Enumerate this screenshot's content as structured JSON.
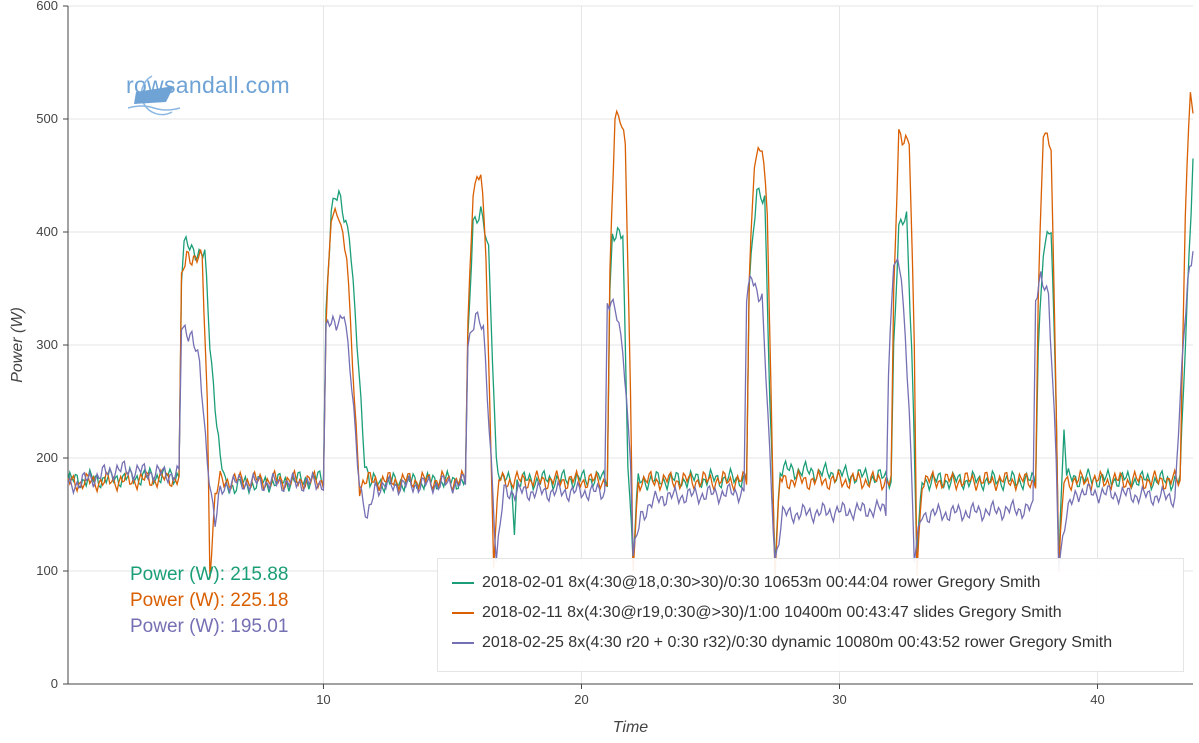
{
  "logo_text": "rowsandall.com",
  "readout": [
    {
      "label": "Power (W): 215.88",
      "color": "#1b9e77"
    },
    {
      "label": "Power (W): 225.18",
      "color": "#d95f02"
    },
    {
      "label": "Power (W): 195.01",
      "color": "#7570b3"
    }
  ],
  "chart_data": {
    "type": "line",
    "title": "",
    "xlabel": "Time",
    "ylabel": "Power (W)",
    "xlim": [
      0.1,
      43.7
    ],
    "ylim": [
      0,
      600
    ],
    "xticks": [
      10,
      20,
      30,
      40
    ],
    "yticks": [
      0,
      100,
      200,
      300,
      400,
      500,
      600
    ],
    "grid": true,
    "legend_position": "bottom-right",
    "series": [
      {
        "name": "2018-02-01 8x(4:30@18,0:30>30)/0:30 10653m 00:44:04 rower Gregory Smith",
        "color": "#1b9e77",
        "points": [
          [
            0.1,
            180
          ],
          [
            4.4,
            185
          ],
          [
            4.5,
            360
          ],
          [
            4.6,
            388
          ],
          [
            5.4,
            380
          ],
          [
            5.6,
            300
          ],
          [
            6.0,
            200
          ],
          [
            6.2,
            175
          ],
          [
            10.0,
            182
          ],
          [
            10.1,
            330
          ],
          [
            10.3,
            420
          ],
          [
            10.6,
            432
          ],
          [
            11.0,
            400
          ],
          [
            11.3,
            300
          ],
          [
            11.6,
            200
          ],
          [
            11.8,
            178
          ],
          [
            15.5,
            180
          ],
          [
            15.6,
            300
          ],
          [
            15.8,
            410
          ],
          [
            16.1,
            420
          ],
          [
            16.4,
            380
          ],
          [
            16.7,
            200
          ],
          [
            16.9,
            180
          ],
          [
            17.3,
            180
          ],
          [
            17.4,
            135
          ],
          [
            17.5,
            180
          ],
          [
            21.0,
            182
          ],
          [
            21.1,
            350
          ],
          [
            21.2,
            398
          ],
          [
            21.6,
            395
          ],
          [
            21.8,
            200
          ],
          [
            22.0,
            110
          ],
          [
            22.2,
            180
          ],
          [
            26.4,
            182
          ],
          [
            26.5,
            350
          ],
          [
            26.8,
            440
          ],
          [
            27.1,
            430
          ],
          [
            27.3,
            250
          ],
          [
            27.5,
            110
          ],
          [
            27.7,
            190
          ],
          [
            32.0,
            182
          ],
          [
            32.1,
            300
          ],
          [
            32.3,
            400
          ],
          [
            32.6,
            415
          ],
          [
            32.8,
            300
          ],
          [
            33.0,
            110
          ],
          [
            33.2,
            180
          ],
          [
            37.6,
            180
          ],
          [
            37.7,
            300
          ],
          [
            37.9,
            385
          ],
          [
            38.2,
            400
          ],
          [
            38.4,
            250
          ],
          [
            38.5,
            110
          ],
          [
            38.7,
            230
          ],
          [
            38.8,
            182
          ],
          [
            43.2,
            180
          ],
          [
            43.4,
            300
          ],
          [
            43.7,
            465
          ]
        ]
      },
      {
        "name": "2018-02-11 8x(4:30@r19,0:30@>30)/1:00 10400m 00:43:47 slides Gregory Smith",
        "color": "#d95f02",
        "points": [
          [
            0.1,
            178
          ],
          [
            4.4,
            182
          ],
          [
            4.5,
            355
          ],
          [
            4.7,
            380
          ],
          [
            5.3,
            375
          ],
          [
            5.5,
            250
          ],
          [
            5.6,
            100
          ],
          [
            5.8,
            165
          ],
          [
            6.0,
            180
          ],
          [
            10.0,
            180
          ],
          [
            10.1,
            320
          ],
          [
            10.3,
            410
          ],
          [
            10.6,
            418
          ],
          [
            10.9,
            380
          ],
          [
            11.2,
            250
          ],
          [
            11.4,
            175
          ],
          [
            11.6,
            180
          ],
          [
            15.5,
            180
          ],
          [
            15.6,
            320
          ],
          [
            15.8,
            440
          ],
          [
            16.1,
            450
          ],
          [
            16.3,
            380
          ],
          [
            16.5,
            200
          ],
          [
            16.6,
            110
          ],
          [
            16.8,
            180
          ],
          [
            21.0,
            180
          ],
          [
            21.1,
            360
          ],
          [
            21.3,
            500
          ],
          [
            21.5,
            505
          ],
          [
            21.7,
            480
          ],
          [
            21.9,
            250
          ],
          [
            22.0,
            100
          ],
          [
            22.2,
            180
          ],
          [
            26.4,
            180
          ],
          [
            26.5,
            360
          ],
          [
            26.7,
            465
          ],
          [
            27.0,
            472
          ],
          [
            27.2,
            420
          ],
          [
            27.4,
            200
          ],
          [
            27.5,
            100
          ],
          [
            27.7,
            180
          ],
          [
            32.0,
            180
          ],
          [
            32.1,
            340
          ],
          [
            32.3,
            488
          ],
          [
            32.7,
            480
          ],
          [
            32.9,
            300
          ],
          [
            33.0,
            100
          ],
          [
            33.2,
            180
          ],
          [
            37.6,
            180
          ],
          [
            37.7,
            340
          ],
          [
            37.9,
            485
          ],
          [
            38.2,
            480
          ],
          [
            38.4,
            250
          ],
          [
            38.5,
            100
          ],
          [
            38.7,
            180
          ],
          [
            43.2,
            180
          ],
          [
            43.4,
            420
          ],
          [
            43.6,
            525
          ],
          [
            43.7,
            505
          ]
        ]
      },
      {
        "name": "2018-02-25 8x(4:30 r20 + 0:30 r32)/0:30 dynamic 10080m 00:43:52 rower Gregory Smith",
        "color": "#7570b3",
        "points": [
          [
            0.1,
            175
          ],
          [
            2,
            190
          ],
          [
            4.4,
            185
          ],
          [
            4.5,
            315
          ],
          [
            4.9,
            310
          ],
          [
            5.2,
            280
          ],
          [
            5.5,
            200
          ],
          [
            5.8,
            140
          ],
          [
            6.0,
            170
          ],
          [
            6.3,
            178
          ],
          [
            10.0,
            178
          ],
          [
            10.1,
            315
          ],
          [
            10.5,
            320
          ],
          [
            10.8,
            330
          ],
          [
            11.1,
            260
          ],
          [
            11.4,
            180
          ],
          [
            11.7,
            142
          ],
          [
            12.0,
            175
          ],
          [
            15.5,
            178
          ],
          [
            15.6,
            300
          ],
          [
            15.9,
            330
          ],
          [
            16.2,
            310
          ],
          [
            16.5,
            200
          ],
          [
            16.7,
            110
          ],
          [
            17.0,
            170
          ],
          [
            20.9,
            170
          ],
          [
            21.0,
            340
          ],
          [
            21.3,
            330
          ],
          [
            21.6,
            300
          ],
          [
            21.9,
            200
          ],
          [
            22.0,
            110
          ],
          [
            22.3,
            150
          ],
          [
            23,
            165
          ],
          [
            26.3,
            170
          ],
          [
            26.4,
            340
          ],
          [
            26.6,
            360
          ],
          [
            27.0,
            340
          ],
          [
            27.3,
            200
          ],
          [
            27.5,
            110
          ],
          [
            27.8,
            150
          ],
          [
            31.8,
            155
          ],
          [
            31.9,
            280
          ],
          [
            32.1,
            375
          ],
          [
            32.4,
            360
          ],
          [
            32.7,
            250
          ],
          [
            32.9,
            110
          ],
          [
            33.2,
            150
          ],
          [
            37.5,
            155
          ],
          [
            37.6,
            340
          ],
          [
            37.8,
            365
          ],
          [
            38.1,
            340
          ],
          [
            38.4,
            200
          ],
          [
            38.5,
            110
          ],
          [
            38.8,
            150
          ],
          [
            39.2,
            170
          ],
          [
            43.0,
            165
          ],
          [
            43.2,
            250
          ],
          [
            43.5,
            360
          ],
          [
            43.7,
            383
          ]
        ]
      }
    ]
  }
}
